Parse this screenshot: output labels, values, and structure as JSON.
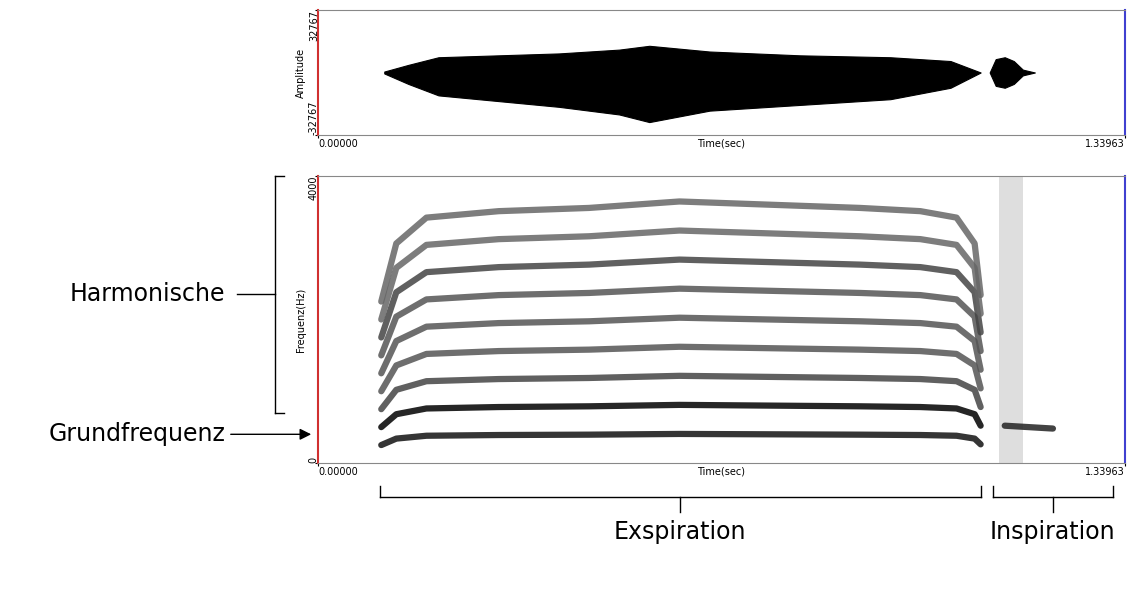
{
  "chart_data": [
    {
      "type": "area",
      "y_label": "Amplitude",
      "x_label": "Time(sec)",
      "xlim": [
        0,
        1.33963
      ],
      "xticks": [
        {
          "value": 0,
          "label": "0.00000"
        },
        {
          "value": 1.33963,
          "label": "1.33963"
        }
      ],
      "ylim": [
        -32767,
        32767
      ],
      "yticks": [
        -32767,
        32767
      ],
      "series": [
        {
          "color": "#000000",
          "x": [
            0.11,
            0.15,
            0.2,
            0.3,
            0.4,
            0.5,
            0.55,
            0.65,
            0.8,
            0.95,
            1.05,
            1.1
          ],
          "upper": [
            500,
            4000,
            8000,
            9000,
            10000,
            12000,
            14000,
            11000,
            9000,
            8000,
            6000,
            0
          ],
          "lower": [
            -500,
            -6000,
            -12000,
            -15000,
            -18000,
            -22000,
            -26000,
            -20000,
            -17000,
            -14000,
            -8000,
            0
          ]
        },
        {
          "color": "#000000",
          "x": [
            1.115,
            1.125,
            1.14,
            1.155,
            1.17,
            1.19
          ],
          "upper": [
            0,
            7000,
            8000,
            6000,
            1500,
            0
          ],
          "lower": [
            0,
            -7000,
            -8000,
            -6000,
            -1500,
            0
          ]
        }
      ]
    },
    {
      "type": "spectrogram",
      "y_label": "Frequenz(Hz)",
      "x_label": "Time(sec)",
      "xlim": [
        0,
        1.33963
      ],
      "xticks": [
        {
          "value": 0,
          "label": "0.00000"
        },
        {
          "value": 1.33963,
          "label": "1.33963"
        }
      ],
      "ylim": [
        0,
        4000
      ],
      "yticks": [
        0,
        4000
      ],
      "series": [
        {
          "color": "#111111",
          "x": [
            0.105,
            0.13,
            0.18,
            0.3,
            0.45,
            0.6,
            0.75,
            0.9,
            1.0,
            1.06,
            1.09,
            1.1
          ],
          "values": [
            250,
            340,
            380,
            390,
            395,
            405,
            400,
            395,
            390,
            380,
            340,
            260
          ]
        },
        {
          "color": "#000000",
          "x": [
            0.105,
            0.13,
            0.18,
            0.3,
            0.45,
            0.6,
            0.75,
            0.9,
            1.0,
            1.06,
            1.09,
            1.1
          ],
          "values": [
            500,
            680,
            760,
            780,
            790,
            810,
            800,
            790,
            780,
            760,
            680,
            520
          ]
        },
        {
          "color": "#444444",
          "x": [
            0.105,
            0.13,
            0.18,
            0.3,
            0.45,
            0.6,
            0.75,
            0.9,
            1.0,
            1.06,
            1.09,
            1.1
          ],
          "values": [
            750,
            1020,
            1140,
            1170,
            1185,
            1215,
            1200,
            1185,
            1170,
            1140,
            1020,
            780
          ]
        },
        {
          "color": "#555555",
          "x": [
            0.105,
            0.13,
            0.18,
            0.3,
            0.45,
            0.6,
            0.75,
            0.9,
            1.0,
            1.06,
            1.09,
            1.1
          ],
          "values": [
            1000,
            1360,
            1520,
            1560,
            1580,
            1620,
            1600,
            1580,
            1560,
            1520,
            1360,
            1040
          ]
        },
        {
          "color": "#555555",
          "x": [
            0.105,
            0.13,
            0.18,
            0.3,
            0.45,
            0.6,
            0.75,
            0.9,
            1.0,
            1.06,
            1.09,
            1.1
          ],
          "values": [
            1250,
            1700,
            1900,
            1950,
            1975,
            2025,
            2000,
            1975,
            1950,
            1900,
            1700,
            1300
          ]
        },
        {
          "color": "#555555",
          "x": [
            0.105,
            0.13,
            0.18,
            0.3,
            0.45,
            0.6,
            0.75,
            0.9,
            1.0,
            1.06,
            1.09,
            1.1
          ],
          "values": [
            1500,
            2040,
            2280,
            2340,
            2370,
            2430,
            2400,
            2370,
            2340,
            2280,
            2040,
            1560
          ]
        },
        {
          "color": "#444444",
          "x": [
            0.105,
            0.13,
            0.18,
            0.3,
            0.45,
            0.6,
            0.75,
            0.9,
            1.0,
            1.06,
            1.09,
            1.1
          ],
          "values": [
            1750,
            2380,
            2660,
            2730,
            2765,
            2835,
            2800,
            2765,
            2730,
            2660,
            2380,
            1820
          ]
        },
        {
          "color": "#666666",
          "x": [
            0.105,
            0.13,
            0.18,
            0.3,
            0.45,
            0.6,
            0.75,
            0.9,
            1.0,
            1.06,
            1.09,
            1.1
          ],
          "values": [
            2000,
            2720,
            3040,
            3120,
            3160,
            3240,
            3200,
            3160,
            3120,
            3040,
            2720,
            2080
          ]
        },
        {
          "color": "#666666",
          "x": [
            0.105,
            0.13,
            0.18,
            0.3,
            0.45,
            0.6,
            0.75,
            0.9,
            1.0,
            1.06,
            1.09,
            1.1
          ],
          "values": [
            2250,
            3060,
            3420,
            3510,
            3555,
            3645,
            3600,
            3555,
            3510,
            3420,
            3060,
            2340
          ]
        },
        {
          "color": "#222222",
          "x": [
            1.14,
            1.22
          ],
          "values": [
            520,
            480
          ]
        }
      ],
      "noise_bands": [
        {
          "start": 1.13,
          "end": 1.17,
          "low": 0,
          "high": 4000
        }
      ],
      "annotations": [
        {
          "text": "Harmonische",
          "low": 700,
          "high": 4000
        },
        {
          "text": "Grundfrequenz",
          "y": 400
        },
        {
          "text": "Exspiration",
          "start": 0.103,
          "end": 1.1
        },
        {
          "text": "Inspiration",
          "start": 1.12,
          "end": 1.32
        }
      ]
    }
  ]
}
